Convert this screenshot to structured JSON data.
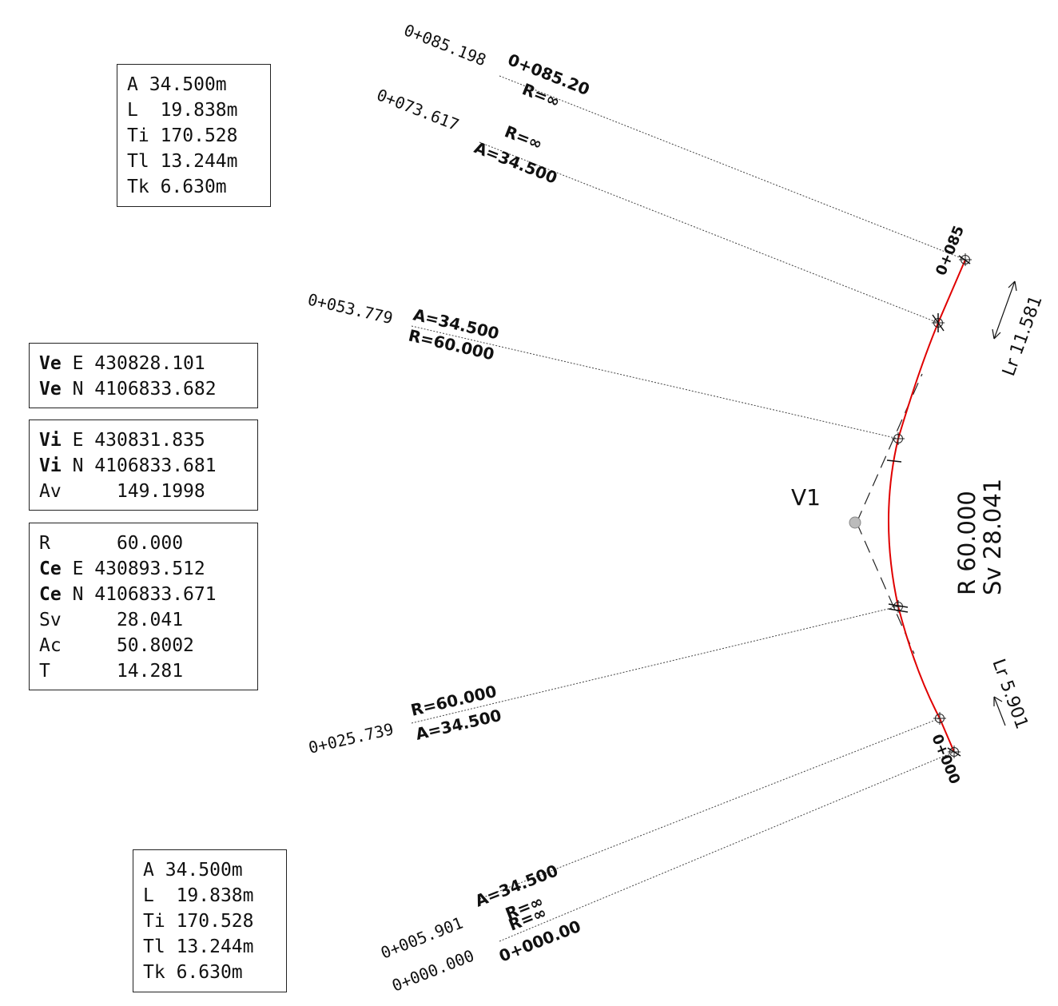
{
  "colors": {
    "alignment": "#e00000",
    "ink": "#111111",
    "leader": "#444444"
  },
  "tables": {
    "spiral_top": [
      {
        "key": "A",
        "val": "34.500m"
      },
      {
        "key": "L",
        "val": "19.838m"
      },
      {
        "key": "Ti",
        "val": "170.528"
      },
      {
        "key": "Tl",
        "val": "13.244m"
      },
      {
        "key": "Tk",
        "val": "6.630m"
      }
    ],
    "ve": [
      {
        "key": "Ve",
        "axis": "E",
        "val": "430828.101"
      },
      {
        "key": "Ve",
        "axis": "N",
        "val": "4106833.682"
      }
    ],
    "vi": [
      {
        "key": "Vi",
        "axis": "E",
        "val": "430831.835"
      },
      {
        "key": "Vi",
        "axis": "N",
        "val": "4106833.681"
      },
      {
        "key": "Av",
        "axis": "",
        "val": "149.1998"
      }
    ],
    "curve": [
      {
        "key": "R",
        "axis": "",
        "val": "60.000",
        "bold": false
      },
      {
        "key": "Ce",
        "axis": "E",
        "val": "430893.512",
        "bold": true
      },
      {
        "key": "Ce",
        "axis": "N",
        "val": "4106833.671",
        "bold": true
      },
      {
        "key": "Sv",
        "axis": "",
        "val": "28.041",
        "bold": false
      },
      {
        "key": "Ac",
        "axis": "",
        "val": "50.8002",
        "bold": false
      },
      {
        "key": "T",
        "axis": "",
        "val": "14.281",
        "bold": false
      }
    ],
    "spiral_bottom": [
      {
        "key": "A",
        "val": "34.500m"
      },
      {
        "key": "L",
        "val": "19.838m"
      },
      {
        "key": "Ti",
        "val": "170.528"
      },
      {
        "key": "Tl",
        "val": "13.244m"
      },
      {
        "key": "Tk",
        "val": "6.630m"
      }
    ]
  },
  "stations": {
    "s85198": "0+085.198",
    "s85_20": "0+085.20",
    "r_inf_1": "R=∞",
    "s73617": "0+073.617",
    "r_inf_2": "R=∞",
    "a_1": "A=34.500",
    "s53779": "0+053.779",
    "a_2": "A=34.500",
    "r60_1": "R=60.000",
    "s25739": "0+025.739",
    "r60_2": "R=60.000",
    "a_3": "A=34.500",
    "s5901": "0+005.901",
    "a_4": "A=34.500",
    "r_inf_3": "R=∞",
    "r_inf_4": "R=∞",
    "s0000": "0+000.000",
    "s0_00": "0+000.00",
    "tick_085": "0+085",
    "tick_000": "0+000"
  },
  "annotations": {
    "vertex": "V1",
    "curve_r": "R 60.000",
    "curve_sv": "Sv 28.041",
    "lr_top": "Lr 11.581",
    "lr_bottom": "Lr 5.901"
  }
}
